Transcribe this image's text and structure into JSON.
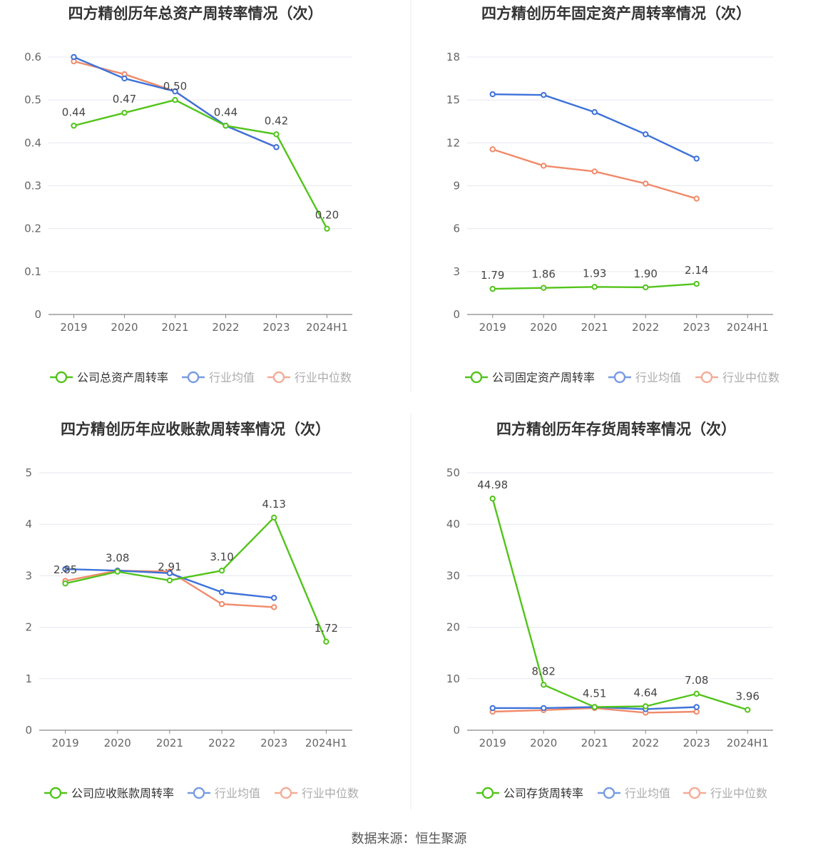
{
  "colors": {
    "company": "#52c41a",
    "avg": "#3d72d9",
    "median": "#f08a6a",
    "grid": "#e6e8f0",
    "axis": "#888888",
    "text": "#666666",
    "title": "#333333"
  },
  "footer": "数据来源：恒生聚源",
  "chart_data": [
    {
      "type": "line",
      "title": "四方精创历年总资产周转率情况（次）",
      "categories": [
        "2019",
        "2020",
        "2021",
        "2022",
        "2023",
        "2024H1"
      ],
      "yticks": [
        "0",
        "0.1",
        "0.2",
        "0.3",
        "0.4",
        "0.5",
        "0.6"
      ],
      "ylim": [
        0,
        0.6
      ],
      "grid": true,
      "legend_position": "bottom",
      "series": [
        {
          "name": "公司总资产周转率",
          "values": [
            0.44,
            0.47,
            0.5,
            0.44,
            0.42,
            0.2
          ],
          "labels": [
            "0.44",
            "0.47",
            "0.50",
            "0.44",
            "0.42",
            "0.20"
          ]
        },
        {
          "name": "行业均值",
          "values": [
            0.6,
            0.55,
            0.52,
            0.44,
            0.39,
            null
          ]
        },
        {
          "name": "行业中位数",
          "values": [
            0.59,
            0.56,
            0.52,
            0.44,
            0.39,
            null
          ]
        }
      ]
    },
    {
      "type": "line",
      "title": "四方精创历年固定资产周转率情况（次）",
      "categories": [
        "2019",
        "2020",
        "2021",
        "2022",
        "2023",
        "2024H1"
      ],
      "yticks": [
        "0",
        "3",
        "6",
        "9",
        "12",
        "15",
        "18"
      ],
      "ylim": [
        0,
        18
      ],
      "grid": true,
      "legend_position": "bottom",
      "series": [
        {
          "name": "公司固定资产周转率",
          "values": [
            1.79,
            1.86,
            1.93,
            1.9,
            2.14,
            null
          ],
          "labels": [
            "1.79",
            "1.86",
            "1.93",
            "1.90",
            "2.14",
            ""
          ]
        },
        {
          "name": "行业均值",
          "values": [
            15.4,
            15.35,
            14.15,
            12.6,
            10.9,
            null
          ]
        },
        {
          "name": "行业中位数",
          "values": [
            11.55,
            10.4,
            10.0,
            9.15,
            8.1,
            null
          ]
        }
      ]
    },
    {
      "type": "line",
      "title": "四方精创历年应收账款周转率情况（次）",
      "categories": [
        "2019",
        "2020",
        "2021",
        "2022",
        "2023",
        "2024H1"
      ],
      "yticks": [
        "0",
        "1",
        "2",
        "3",
        "4",
        "5"
      ],
      "ylim": [
        0,
        5
      ],
      "grid": true,
      "legend_position": "bottom",
      "series": [
        {
          "name": "公司应收账款周转率",
          "values": [
            2.85,
            3.08,
            2.91,
            3.1,
            4.13,
            1.72
          ],
          "labels": [
            "2.85",
            "3.08",
            "2.91",
            "3.10",
            "4.13",
            "1.72"
          ]
        },
        {
          "name": "行业均值",
          "values": [
            3.13,
            3.1,
            3.05,
            2.68,
            2.57,
            null
          ]
        },
        {
          "name": "行业中位数",
          "values": [
            2.9,
            3.1,
            3.08,
            2.45,
            2.39,
            null
          ]
        }
      ]
    },
    {
      "type": "line",
      "title": "四方精创历年存货周转率情况（次）",
      "categories": [
        "2019",
        "2020",
        "2021",
        "2022",
        "2023",
        "2024H1"
      ],
      "yticks": [
        "0",
        "10",
        "20",
        "30",
        "40",
        "50"
      ],
      "ylim": [
        0,
        50
      ],
      "grid": true,
      "legend_position": "bottom",
      "series": [
        {
          "name": "公司存货周转率",
          "values": [
            44.98,
            8.82,
            4.51,
            4.64,
            7.08,
            3.96
          ],
          "labels": [
            "44.98",
            "8.82",
            "4.51",
            "4.64",
            "7.08",
            "3.96"
          ]
        },
        {
          "name": "行业均值",
          "values": [
            4.3,
            4.3,
            4.5,
            4.1,
            4.5,
            null
          ]
        },
        {
          "name": "行业中位数",
          "values": [
            3.6,
            3.9,
            4.3,
            3.4,
            3.6,
            null
          ]
        }
      ]
    }
  ]
}
